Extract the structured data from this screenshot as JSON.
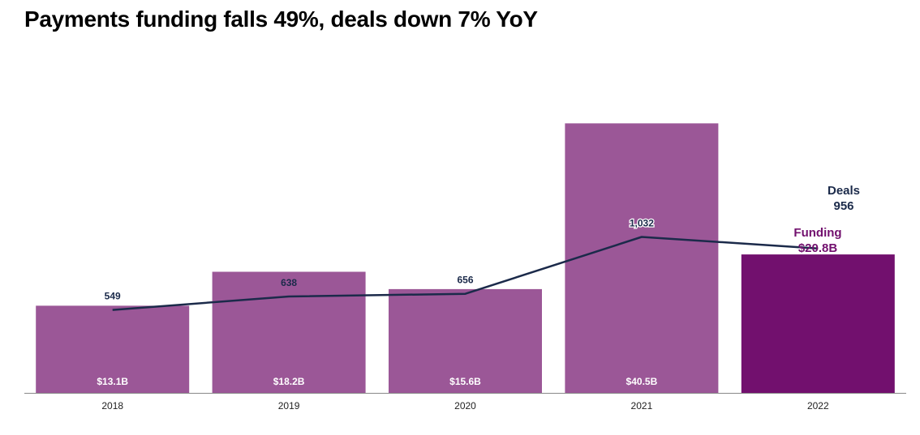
{
  "title": "Payments funding falls 49%, deals down 7% YoY",
  "chart_data": {
    "type": "bar",
    "categories": [
      "2018",
      "2019",
      "2020",
      "2021",
      "2022"
    ],
    "series": [
      {
        "name": "Funding",
        "type": "bar",
        "values": [
          13.1,
          18.2,
          15.6,
          40.5,
          20.8
        ],
        "labels": [
          "$13.1B",
          "$18.2B",
          "$15.6B",
          "$40.5B",
          "$20.8B"
        ]
      },
      {
        "name": "Deals",
        "type": "line",
        "values": [
          549,
          638,
          656,
          1032,
          956
        ],
        "labels": [
          "549",
          "638",
          "656",
          "1,032",
          "956"
        ]
      }
    ],
    "callouts": {
      "deals_name": "Deals",
      "deals_value": "956",
      "funding_name": "Funding",
      "funding_value": "$20.8B"
    },
    "funding_ylim": [
      0,
      42
    ],
    "deals_ylim": [
      0,
      1850
    ],
    "grid": false,
    "legend": "none",
    "colors": {
      "bar": "#9b5797",
      "bar_highlight": "#72106e",
      "line": "#1b2a4a",
      "axis": "#888888"
    }
  }
}
